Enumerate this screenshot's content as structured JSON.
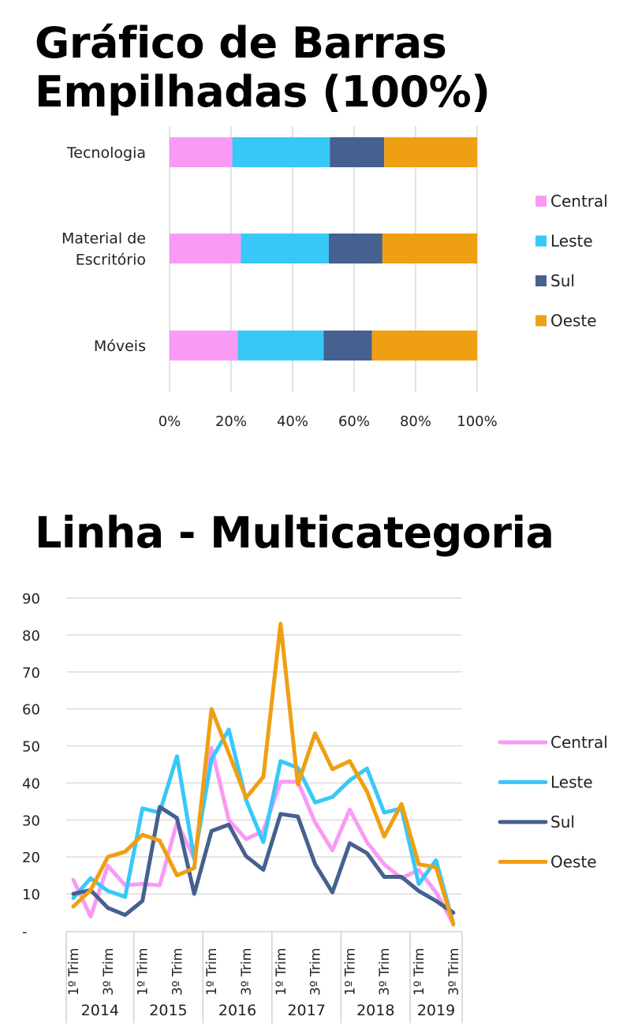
{
  "chart_data": [
    {
      "type": "bar",
      "stacked": "percent",
      "orientation": "horizontal",
      "title": "Gráfico de Barras Empilhadas (100%)",
      "categories": [
        "Tecnologia",
        "Material de Escritório",
        "Móveis"
      ],
      "category_lines": [
        [
          "Tecnologia"
        ],
        [
          "Material de",
          "Escritório"
        ],
        [
          "Móveis"
        ]
      ],
      "series": [
        {
          "name": "Central",
          "color": "#f99af5",
          "values": [
            20.4,
            23.2,
            22.2
          ]
        },
        {
          "name": "Leste",
          "color": "#38c8f8",
          "values": [
            31.7,
            28.6,
            27.9
          ]
        },
        {
          "name": "Sul",
          "color": "#46608f",
          "values": [
            17.7,
            17.4,
            15.7
          ]
        },
        {
          "name": "Oeste",
          "color": "#ef9f12",
          "values": [
            30.2,
            30.8,
            34.2
          ]
        }
      ],
      "xlim": [
        0,
        100
      ],
      "x_ticks": [
        "0%",
        "20%",
        "40%",
        "60%",
        "80%",
        "100%"
      ],
      "grid": "vertical",
      "legend": "right"
    },
    {
      "type": "line",
      "title": "Linha - Multicategoria",
      "years": [
        "2014",
        "2015",
        "2016",
        "2017",
        "2018",
        "2019"
      ],
      "quarters_per_year": [
        4,
        4,
        4,
        4,
        4,
        3
      ],
      "quarter_labels": {
        "q1": "1º Trim",
        "q3": "3º Trim"
      },
      "ylim": [
        0,
        90
      ],
      "y_ticks": [
        "-",
        "10",
        "20",
        "30",
        "40",
        "50",
        "60",
        "70",
        "80",
        "90"
      ],
      "grid": "horizontal",
      "legend": "right",
      "series": [
        {
          "name": "Central",
          "color": "#f99af5",
          "values": [
            13.8,
            3.9,
            17.6,
            12.3,
            12.7,
            12.3,
            29.3,
            19.5,
            49.4,
            30,
            24.8,
            27,
            40.3,
            40.3,
            29.3,
            21.8,
            32.8,
            24,
            18,
            14.2,
            16.5,
            10.4,
            2
          ]
        },
        {
          "name": "Leste",
          "color": "#38c8f8",
          "values": [
            8.9,
            14.2,
            10.8,
            9.2,
            33.1,
            32,
            47.2,
            19.5,
            46.4,
            54.4,
            35.4,
            24,
            45.9,
            44.1,
            34.7,
            36.2,
            40.7,
            43.9,
            32,
            33.1,
            12.7,
            19.1,
            2
          ]
        },
        {
          "name": "Sul",
          "color": "#46608f",
          "values": [
            10,
            11,
            6.2,
            4.3,
            8.1,
            33.5,
            30.5,
            10,
            27,
            28.7,
            20.2,
            16.5,
            31.6,
            30.9,
            18,
            10.4,
            23.7,
            21,
            14.6,
            14.6,
            10.8,
            8.1,
            4.9
          ]
        },
        {
          "name": "Oeste",
          "color": "#ef9f12",
          "values": [
            6.6,
            11,
            20,
            21.4,
            26,
            24.4,
            15,
            17,
            60,
            48,
            36,
            41.6,
            83,
            39.6,
            53.4,
            43.7,
            45.9,
            37.7,
            25.5,
            34.3,
            18,
            17.2,
            1.7
          ]
        }
      ]
    }
  ]
}
